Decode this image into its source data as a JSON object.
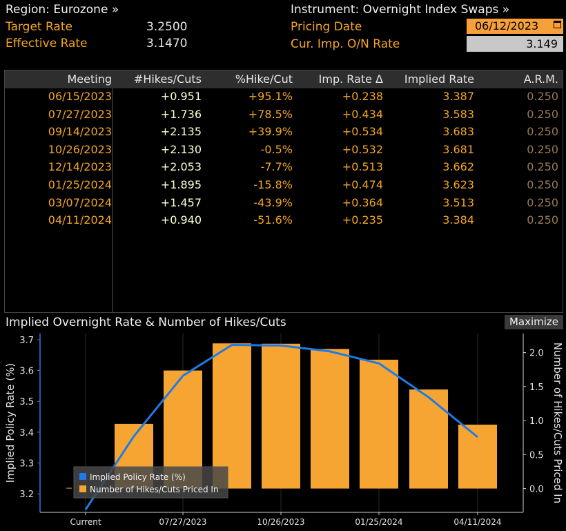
{
  "header": {
    "region_label": "Region: Eurozone »",
    "instrument_label": "Instrument: Overnight Index Swaps »",
    "target_rate_label": "Target Rate",
    "target_rate_value": "3.2500",
    "effective_rate_label": "Effective Rate",
    "effective_rate_value": "3.1470",
    "pricing_date_label": "Pricing Date",
    "pricing_date_value": "06/12/2023",
    "cur_imp_label": "Cur. Imp. O/N Rate",
    "cur_imp_value": "3.149"
  },
  "table": {
    "columns": [
      "Meeting",
      "#Hikes/Cuts",
      "%Hike/Cut",
      "Imp. Rate Δ",
      "Implied Rate",
      "A.R.M."
    ],
    "rows": [
      [
        "06/15/2023",
        "+0.951",
        "+95.1%",
        "+0.238",
        "3.387",
        "0.250"
      ],
      [
        "07/27/2023",
        "+1.736",
        "+78.5%",
        "+0.434",
        "3.583",
        "0.250"
      ],
      [
        "09/14/2023",
        "+2.135",
        "+39.9%",
        "+0.534",
        "3.683",
        "0.250"
      ],
      [
        "10/26/2023",
        "+2.130",
        "-0.5%",
        "+0.532",
        "3.681",
        "0.250"
      ],
      [
        "12/14/2023",
        "+2.053",
        "-7.7%",
        "+0.513",
        "3.662",
        "0.250"
      ],
      [
        "01/25/2024",
        "+1.895",
        "-15.8%",
        "+0.474",
        "3.623",
        "0.250"
      ],
      [
        "03/07/2024",
        "+1.457",
        "-43.9%",
        "+0.364",
        "3.513",
        "0.250"
      ],
      [
        "04/11/2024",
        "+0.940",
        "-51.6%",
        "+0.235",
        "3.384",
        "0.250"
      ]
    ]
  },
  "chart_panel": {
    "title": "Implied Overnight Rate & Number of Hikes/Cuts",
    "maximize_label": "Maximize"
  },
  "chart_data": {
    "type": "bar",
    "categories": [
      "Current",
      "06/15/2023",
      "07/27/2023",
      "09/14/2023",
      "10/26/2023",
      "12/14/2023",
      "01/25/2024",
      "03/07/2024",
      "04/11/2024"
    ],
    "x_tick_labels": [
      "Current",
      "07/27/2023",
      "10/26/2023",
      "01/25/2024",
      "04/11/2024"
    ],
    "series": [
      {
        "name": "Implied Policy Rate (%)",
        "type": "line",
        "axis": "left",
        "color": "#1e7be6",
        "values": [
          3.149,
          3.387,
          3.583,
          3.683,
          3.681,
          3.662,
          3.623,
          3.513,
          3.384
        ]
      },
      {
        "name": "Number of Hikes/Cuts Priced In",
        "type": "bar",
        "axis": "right",
        "color": "#f7a532",
        "values": [
          0.0,
          0.951,
          1.736,
          2.135,
          2.13,
          2.053,
          1.895,
          1.457,
          0.94
        ]
      }
    ],
    "ylabel": "Implied Policy Rate (%)",
    "y2label": "Number of Hikes/Cuts Priced In",
    "ylim": [
      3.14,
      3.72
    ],
    "y2lim": [
      -0.35,
      2.28
    ],
    "yticks": [
      "3.2",
      "3.3",
      "3.4",
      "3.5",
      "3.6",
      "3.7"
    ],
    "y2ticks": [
      "0.0",
      "0.5",
      "1.0",
      "1.5",
      "2.0"
    ],
    "legend_position": "bottom-left",
    "grid": true
  }
}
